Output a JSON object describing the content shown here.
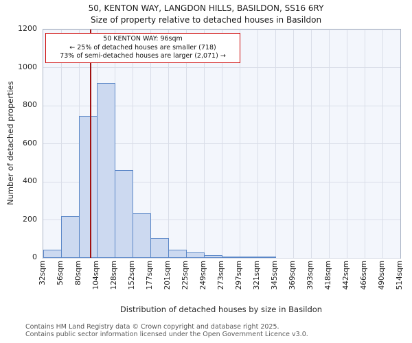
{
  "header": {
    "title_line1": "50, KENTON WAY, LANGDON HILLS, BASILDON, SS16 6RY",
    "title_line2": "Size of property relative to detached houses in Basildon"
  },
  "annotation": {
    "line1": "50 KENTON WAY: 96sqm",
    "line2": "← 25% of detached houses are smaller (718)",
    "line3": "73% of semi-detached houses are larger (2,071) →",
    "border_color": "#cc0000"
  },
  "footer": {
    "line1": "Contains HM Land Registry data © Crown copyright and database right 2025.",
    "line2": "Contains public sector information licensed under the Open Government Licence v3.0."
  },
  "chart_data": {
    "type": "bar",
    "title": "50, KENTON WAY, LANGDON HILLS, BASILDON, SS16 6RY — Size of property relative to detached houses in Basildon",
    "xlabel": "Distribution of detached houses by size in Basildon",
    "ylabel": "Number of detached properties",
    "ylim": [
      0,
      1200
    ],
    "yticks": [
      0,
      200,
      400,
      600,
      800,
      1000,
      1200
    ],
    "grid": true,
    "legend": false,
    "tick_labels": [
      "32sqm",
      "56sqm",
      "80sqm",
      "104sqm",
      "128sqm",
      "152sqm",
      "177sqm",
      "201sqm",
      "225sqm",
      "249sqm",
      "273sqm",
      "297sqm",
      "321sqm",
      "345sqm",
      "369sqm",
      "393sqm",
      "418sqm",
      "442sqm",
      "466sqm",
      "490sqm",
      "514sqm"
    ],
    "bin_edges_sqm": [
      32,
      56,
      80,
      104,
      128,
      152,
      177,
      201,
      225,
      249,
      273,
      297,
      321,
      345,
      369,
      393,
      418,
      442,
      466,
      490,
      514
    ],
    "values": [
      45,
      220,
      745,
      920,
      460,
      235,
      105,
      45,
      30,
      15,
      8,
      5,
      3,
      0,
      0,
      0,
      0,
      0,
      0,
      0
    ],
    "marker": {
      "label": "50 KENTON WAY",
      "value_sqm": 96,
      "color": "#a01010"
    },
    "bar_fill": "#ccd9f0",
    "bar_border": "#5b87c7",
    "plot_bg": "#f3f6fc",
    "grid_color": "#d9dde8"
  }
}
